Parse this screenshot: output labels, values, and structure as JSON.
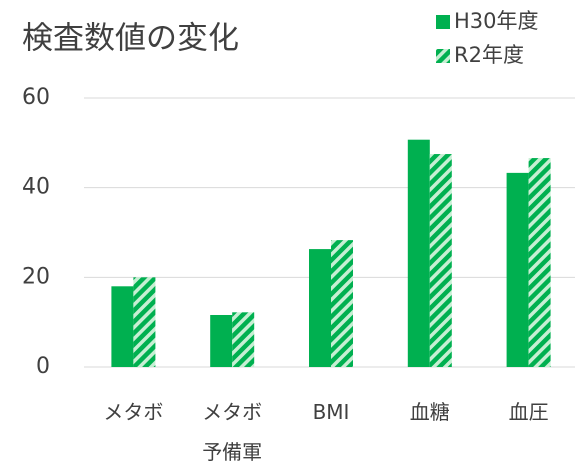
{
  "chart_data": {
    "type": "bar",
    "title": "検査数値の変化",
    "categories": [
      "メタボ",
      "メタボ\n予備軍",
      "BMI",
      "血糖",
      "血圧"
    ],
    "series": [
      {
        "name": "H30年度",
        "color": "#00b050",
        "values": [
          18,
          11.6,
          26.3,
          50.7,
          43.3
        ]
      },
      {
        "name": "R2年度",
        "color": "#00b050",
        "pattern": "hatch",
        "values": [
          20,
          12.2,
          28.3,
          47.5,
          46.6
        ]
      }
    ],
    "ylim": [
      0,
      60
    ],
    "yticks": [
      0,
      20,
      40,
      60
    ],
    "grid": true,
    "legend": "upper right"
  }
}
